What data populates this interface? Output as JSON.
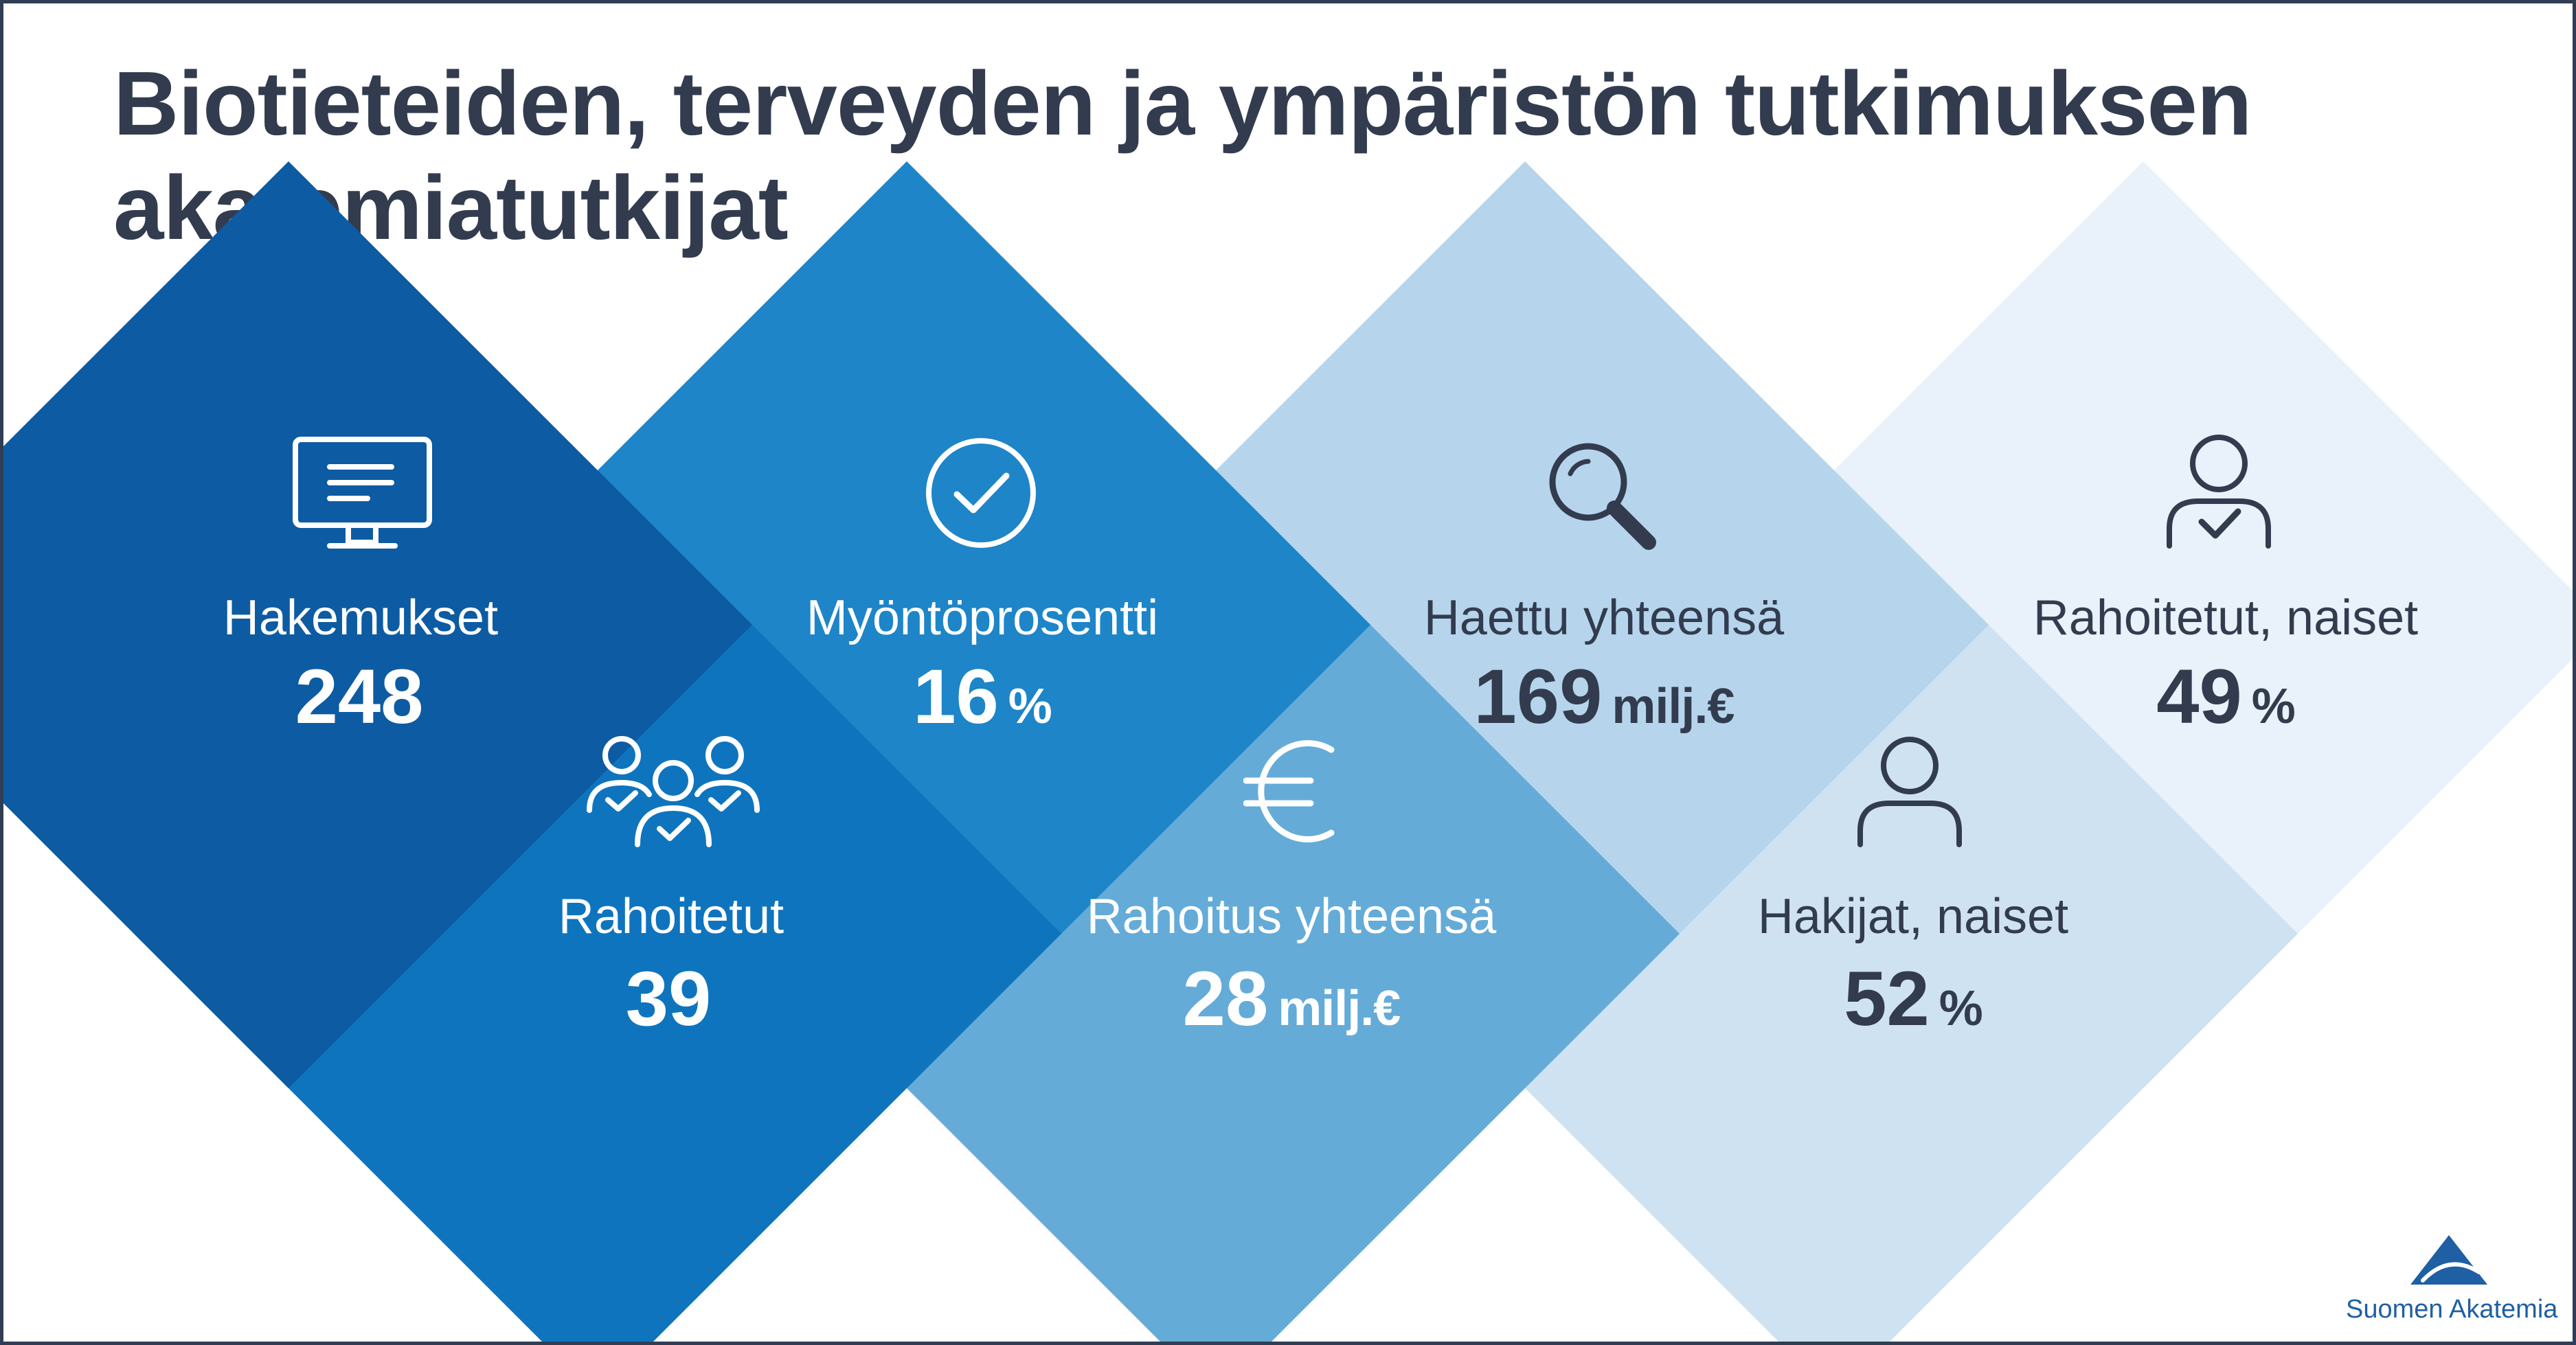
{
  "title": {
    "line1": "Biotieteiden, terveyden ja ympäristön tutkimuksen",
    "line2": "akatemiatutkijat"
  },
  "stats": {
    "hakemukset": {
      "label": "Hakemukset",
      "value": "248",
      "unit": "",
      "icon": "monitor-icon"
    },
    "rahoitetut": {
      "label": "Rahoitetut",
      "value": "39",
      "unit": "",
      "icon": "people-check-icon"
    },
    "myontoprosentti": {
      "label": "Myöntöprosentti",
      "value": "16",
      "unit": "%",
      "icon": "check-circle-icon"
    },
    "rahoitus_yhteensa": {
      "label": "Rahoitus yhteensä",
      "value": "28",
      "unit": "milj.€",
      "icon": "euro-icon"
    },
    "haettu_yhteensa": {
      "label": "Haettu yhteensä",
      "value": "169",
      "unit": "milj.€",
      "icon": "search-icon"
    },
    "hakijat_naiset": {
      "label": "Hakijat, naiset",
      "value": "52",
      "unit": "%",
      "icon": "person-icon"
    },
    "rahoitetut_naiset": {
      "label": "Rahoitetut, naiset",
      "value": "49",
      "unit": "%",
      "icon": "person-check-icon"
    }
  },
  "colors": {
    "title": "#323c4e",
    "tile_hakemukset": "#0d5ba3",
    "tile_rahoitetut": "#0f74be",
    "tile_myontoprosentti": "#1d85c8",
    "tile_rahoitus": "#64abd8",
    "tile_haettu": "#b6d5ec",
    "tile_hakijat": "#cfe2f1",
    "tile_rahoitetut_naiset": "#e9f2fa",
    "dark_text": "#323c4e",
    "light_text": "#ffffff",
    "logo": "#1f5fa3"
  },
  "logo": {
    "text": "Suomen Akatemia",
    "icon": "triangle-logo-icon"
  }
}
